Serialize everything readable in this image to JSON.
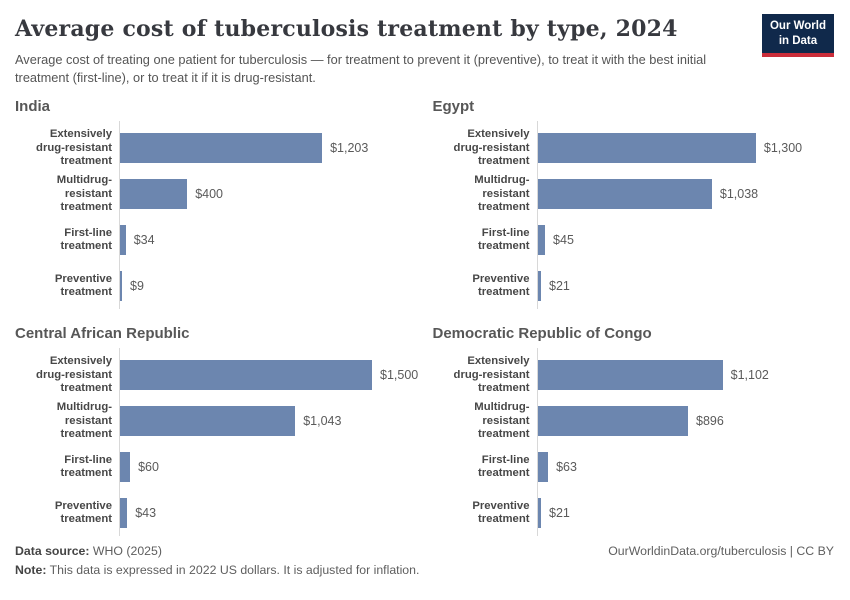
{
  "header": {
    "title": "Average cost of tuberculosis treatment by type, 2024",
    "subtitle": "Average cost of treating one patient for tuberculosis — for treatment to prevent it (preventive), to treat it with the best initial treatment (first-line), or to treat it if it is drug-resistant.",
    "logo": {
      "line1": "Our World",
      "line2": "in Data",
      "navy": "#10294b",
      "red": "#cb2d3a"
    }
  },
  "chart_data": {
    "type": "bar",
    "orientation": "horizontal",
    "unit": "2022 US dollars",
    "xlim": [
      0,
      1500
    ],
    "grid": false,
    "legend": "none",
    "bar_color": "#6c86af",
    "categories": [
      "Extensively drug-resistant treatment",
      "Multidrug-resistant treatment",
      "First-line treatment",
      "Preventive treatment"
    ],
    "categories_display": [
      "Extensively\ndrug-resistant\ntreatment",
      "Multidrug-resistant\ntreatment",
      "First-line treatment",
      "Preventive\ntreatment"
    ],
    "panels": [
      {
        "name": "India",
        "values": [
          1203,
          400,
          34,
          9
        ],
        "value_labels": [
          "$1,203",
          "$400",
          "$34",
          "$9"
        ]
      },
      {
        "name": "Egypt",
        "values": [
          1300,
          1038,
          45,
          21
        ],
        "value_labels": [
          "$1,300",
          "$1,038",
          "$45",
          "$21"
        ]
      },
      {
        "name": "Central African Republic",
        "values": [
          1500,
          1043,
          60,
          43
        ],
        "value_labels": [
          "$1,500",
          "$1,043",
          "$60",
          "$43"
        ]
      },
      {
        "name": "Democratic Republic of Congo",
        "values": [
          1102,
          896,
          63,
          21
        ],
        "value_labels": [
          "$1,102",
          "$896",
          "$63",
          "$21"
        ]
      }
    ]
  },
  "footer": {
    "source_label": "Data source:",
    "source_text": " WHO (2025)",
    "note_label": "Note:",
    "note_text": " This data is expressed in 2022 US dollars. It is adjusted for inflation.",
    "link": "OurWorldinData.org/tuberculosis | CC BY"
  }
}
